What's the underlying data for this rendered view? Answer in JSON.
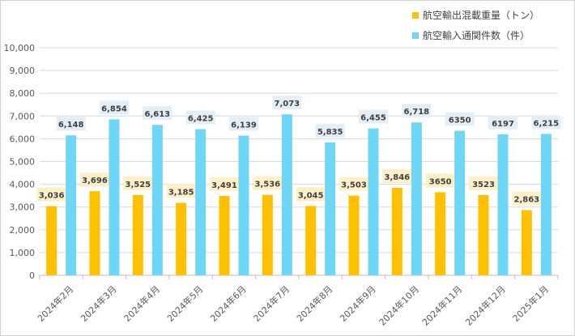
{
  "chart_data": {
    "type": "bar",
    "categories": [
      "2024年2月",
      "2024年3月",
      "2024年4月",
      "2024年5月",
      "2024年6月",
      "2024年7月",
      "2024年8月",
      "2024年9月",
      "2024年10月",
      "2024年11月",
      "2024年12月",
      "2025年1月"
    ],
    "series": [
      {
        "name": "航空輸出混載重量（トン）",
        "color": "#FFC000",
        "label_bg": "#FDF0C9",
        "values": [
          3036,
          3696,
          3525,
          3185,
          3491,
          3536,
          3045,
          3503,
          3846,
          3650,
          3523,
          2863
        ],
        "labels": [
          "3,036",
          "3,696",
          "3,525",
          "3,185",
          "3,491",
          "3,536",
          "3,045",
          "3,503",
          "3,846",
          "3650",
          "3523",
          "2,863"
        ]
      },
      {
        "name": "航空輸入通関件数（件）",
        "color": "#6FD6F6",
        "label_bg": "#E4EEF7",
        "values": [
          6148,
          6854,
          6613,
          6425,
          6139,
          7073,
          5835,
          6455,
          6718,
          6350,
          6197,
          6215
        ],
        "labels": [
          "6,148",
          "6,854",
          "6,613",
          "6,425",
          "6,139",
          "7,073",
          "5,835",
          "6,455",
          "6,718",
          "6350",
          "6197",
          "6,215"
        ]
      }
    ],
    "ylim": [
      0,
      10000
    ],
    "yticks": [
      "0",
      "1,000",
      "2,000",
      "3,000",
      "4,000",
      "5,000",
      "6,000",
      "7,000",
      "8,000",
      "9,000",
      "10,000"
    ],
    "grid": true,
    "legend_position": "top-right"
  }
}
